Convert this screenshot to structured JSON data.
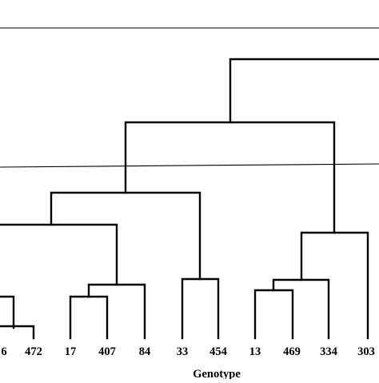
{
  "dendrogram": {
    "leaf_labels": [
      "6",
      "472",
      "17",
      "407",
      "84",
      "33",
      "454",
      "13",
      "469",
      "334",
      "303"
    ],
    "xlabel": "Genotype"
  },
  "colors": {
    "ink": "#000000",
    "background": "#ffffff"
  }
}
